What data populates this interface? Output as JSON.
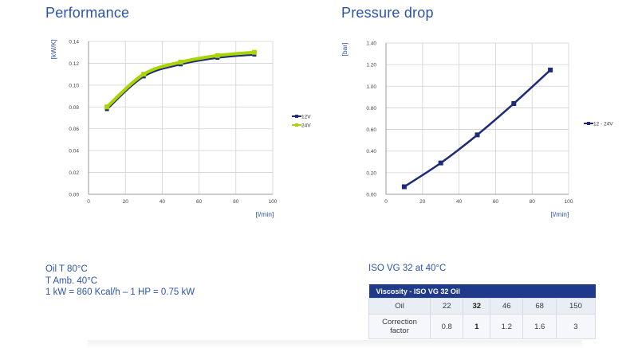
{
  "colors": {
    "heading": "#2b54a8",
    "series_12v": "#1f2a7a",
    "series_24v": "#a8d400",
    "table_header": "#1f3a8a"
  },
  "performance": {
    "title": "Performance",
    "ylabel": "[kW/K]",
    "xlabel": "[l/min]"
  },
  "pressure_drop": {
    "title": "Pressure drop",
    "ylabel": "[bar]",
    "xlabel": "[l/min]"
  },
  "chart_data": [
    {
      "type": "line",
      "title": "Performance",
      "xlabel": "[l/min]",
      "ylabel": "[kW/K]",
      "xlim": [
        0,
        100
      ],
      "ylim": [
        0,
        0.14
      ],
      "x_ticks": [
        0,
        20,
        40,
        60,
        80,
        100
      ],
      "y_ticks": [
        0.0,
        0.02,
        0.04,
        0.06,
        0.08,
        0.1,
        0.12,
        0.14
      ],
      "grid": true,
      "legend": "right",
      "series": [
        {
          "name": "12V",
          "x": [
            10,
            30,
            50,
            70,
            90
          ],
          "values": [
            0.078,
            0.108,
            0.119,
            0.125,
            0.128
          ]
        },
        {
          "name": "24V",
          "x": [
            10,
            30,
            50,
            70,
            90
          ],
          "values": [
            0.08,
            0.11,
            0.121,
            0.127,
            0.13
          ]
        }
      ]
    },
    {
      "type": "line",
      "title": "Pressure drop",
      "xlabel": "[l/min]",
      "ylabel": "[bar]",
      "xlim": [
        0,
        100
      ],
      "ylim": [
        0,
        1.4
      ],
      "x_ticks": [
        0,
        20,
        40,
        60,
        80,
        100
      ],
      "y_ticks": [
        0.0,
        0.2,
        0.4,
        0.6,
        0.8,
        1.0,
        1.2,
        1.4
      ],
      "grid": true,
      "legend": "right",
      "series": [
        {
          "name": "12 - 24V",
          "x": [
            10,
            30,
            50,
            70,
            90
          ],
          "values": [
            0.07,
            0.29,
            0.55,
            0.84,
            1.15
          ]
        }
      ]
    }
  ],
  "notes": {
    "line1": "Oil T 80°C",
    "line2": "T Amb. 40°C",
    "line3": "1 kW = 860 Kcal/h – 1 HP = 0.75 kW"
  },
  "iso_label": "ISO VG 32 at 40°C",
  "viscosity_table": {
    "header": "Viscosity - ISO VG 32 Oil",
    "row1": [
      "Oil",
      "22",
      "32",
      "46",
      "68",
      "150"
    ],
    "row2_label_line1": "Correction",
    "row2_label_line2": "factor",
    "row2": [
      "0.8",
      "1",
      "1.2",
      "1.6",
      "3"
    ]
  }
}
